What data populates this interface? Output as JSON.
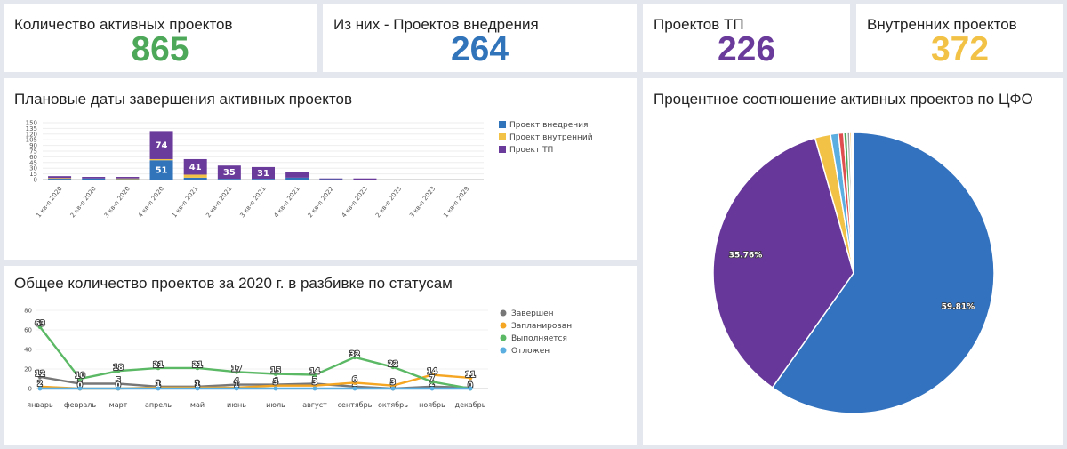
{
  "colors": {
    "green": "#4ea85a",
    "blue": "#3274ba",
    "purple": "#6b3b9b",
    "yellow": "#f2c246",
    "gray": "#777777",
    "orange": "#f5a623",
    "lightblue": "#5aaee0",
    "line_green": "#5bb865",
    "pie_blue": "#3272be",
    "pie_purple": "#67389a"
  },
  "kpis": [
    {
      "label": "Количество активных проектов",
      "value": "865"
    },
    {
      "label": "Из них - Проектов внедрения",
      "value": "264"
    },
    {
      "label": "Проектов ТП",
      "value": "226"
    },
    {
      "label": "Внутренних проектов",
      "value": "372"
    }
  ],
  "panels": {
    "bar_title": "Плановые даты завершения активных проектов",
    "line_title": "Общее количество проектов за 2020 г. в разбивке по статусам",
    "pie_title": "Процентное соотношение активных проектов по ЦФО"
  },
  "chart_data": [
    {
      "type": "bar",
      "stacked": true,
      "categories": [
        "1 кв-л 2020",
        "2 кв-л 2020",
        "3 кв-л 2020",
        "4 кв-л 2020",
        "1 кв-л 2021",
        "2 кв-л 2021",
        "3 кв-л 2021",
        "4 кв-л 2021",
        "2 кв-л 2022",
        "4 кв-л 2022",
        "2 кв-л 2023",
        "3 кв-л 2023",
        "1 кв-л 2029"
      ],
      "series": [
        {
          "name": "Проект внедрения",
          "values": [
            3,
            3,
            2,
            51,
            5,
            2,
            2,
            5,
            1,
            0,
            0,
            0,
            0
          ],
          "labels": [
            "",
            "",
            "",
            "51",
            "",
            "",
            "",
            "",
            "",
            "",
            "",
            "",
            ""
          ]
        },
        {
          "name": "Проект внутренний",
          "values": [
            1,
            0,
            1,
            3,
            8,
            0,
            0,
            0,
            0,
            0,
            0,
            0,
            0
          ],
          "labels": [
            "",
            "",
            "",
            "",
            "",
            "",
            "",
            "",
            "",
            "",
            "",
            "",
            ""
          ]
        },
        {
          "name": "Проект ТП",
          "values": [
            5,
            4,
            4,
            74,
            41,
            35,
            31,
            15,
            2,
            3,
            0,
            0,
            0
          ],
          "labels": [
            "",
            "",
            "",
            "74",
            "41",
            "35",
            "31",
            "",
            "",
            "",
            "",
            "",
            ""
          ]
        }
      ],
      "yticks": [
        0,
        15,
        30,
        45,
        60,
        75,
        90,
        105,
        120,
        135,
        150
      ],
      "ylim": [
        0,
        150
      ],
      "legend": "right"
    },
    {
      "type": "line",
      "categories": [
        "январь",
        "февраль",
        "март",
        "апрель",
        "май",
        "июнь",
        "июль",
        "август",
        "сентябрь",
        "октябрь",
        "ноябрь",
        "декабрь"
      ],
      "series": [
        {
          "name": "Завершен",
          "values": [
            12,
            5,
            5,
            2,
            2,
            4,
            4,
            5,
            2,
            0,
            2,
            1
          ]
        },
        {
          "name": "Запланирован",
          "values": [
            2,
            0,
            0,
            1,
            1,
            1,
            3,
            3,
            6,
            3,
            14,
            11
          ]
        },
        {
          "name": "Выполняется",
          "values": [
            63,
            10,
            18,
            21,
            21,
            17,
            15,
            14,
            32,
            22,
            7,
            0
          ]
        },
        {
          "name": "Отложен",
          "values": [
            0,
            0,
            0,
            0,
            0,
            0,
            0,
            0,
            0,
            0,
            0,
            0
          ]
        }
      ],
      "yticks": [
        0,
        20,
        40,
        60,
        80
      ],
      "ylim": [
        0,
        80
      ],
      "legend": "right"
    },
    {
      "type": "pie",
      "values": [
        59.81,
        35.76,
        1.8,
        0.9,
        0.6,
        0.4,
        0.3,
        0.2,
        0.15,
        0.08
      ],
      "labels": [
        "59.81%",
        "35.76%",
        "",
        "",
        "",
        "",
        "",
        "",
        "",
        ""
      ],
      "colors": [
        "#3272be",
        "#67389a",
        "#f2c246",
        "#5aaee0",
        "#e04f4f",
        "#4ea85a",
        "#9a9a9a",
        "#f5a623",
        "#8fcf8f",
        "#c0c0c0"
      ]
    }
  ]
}
